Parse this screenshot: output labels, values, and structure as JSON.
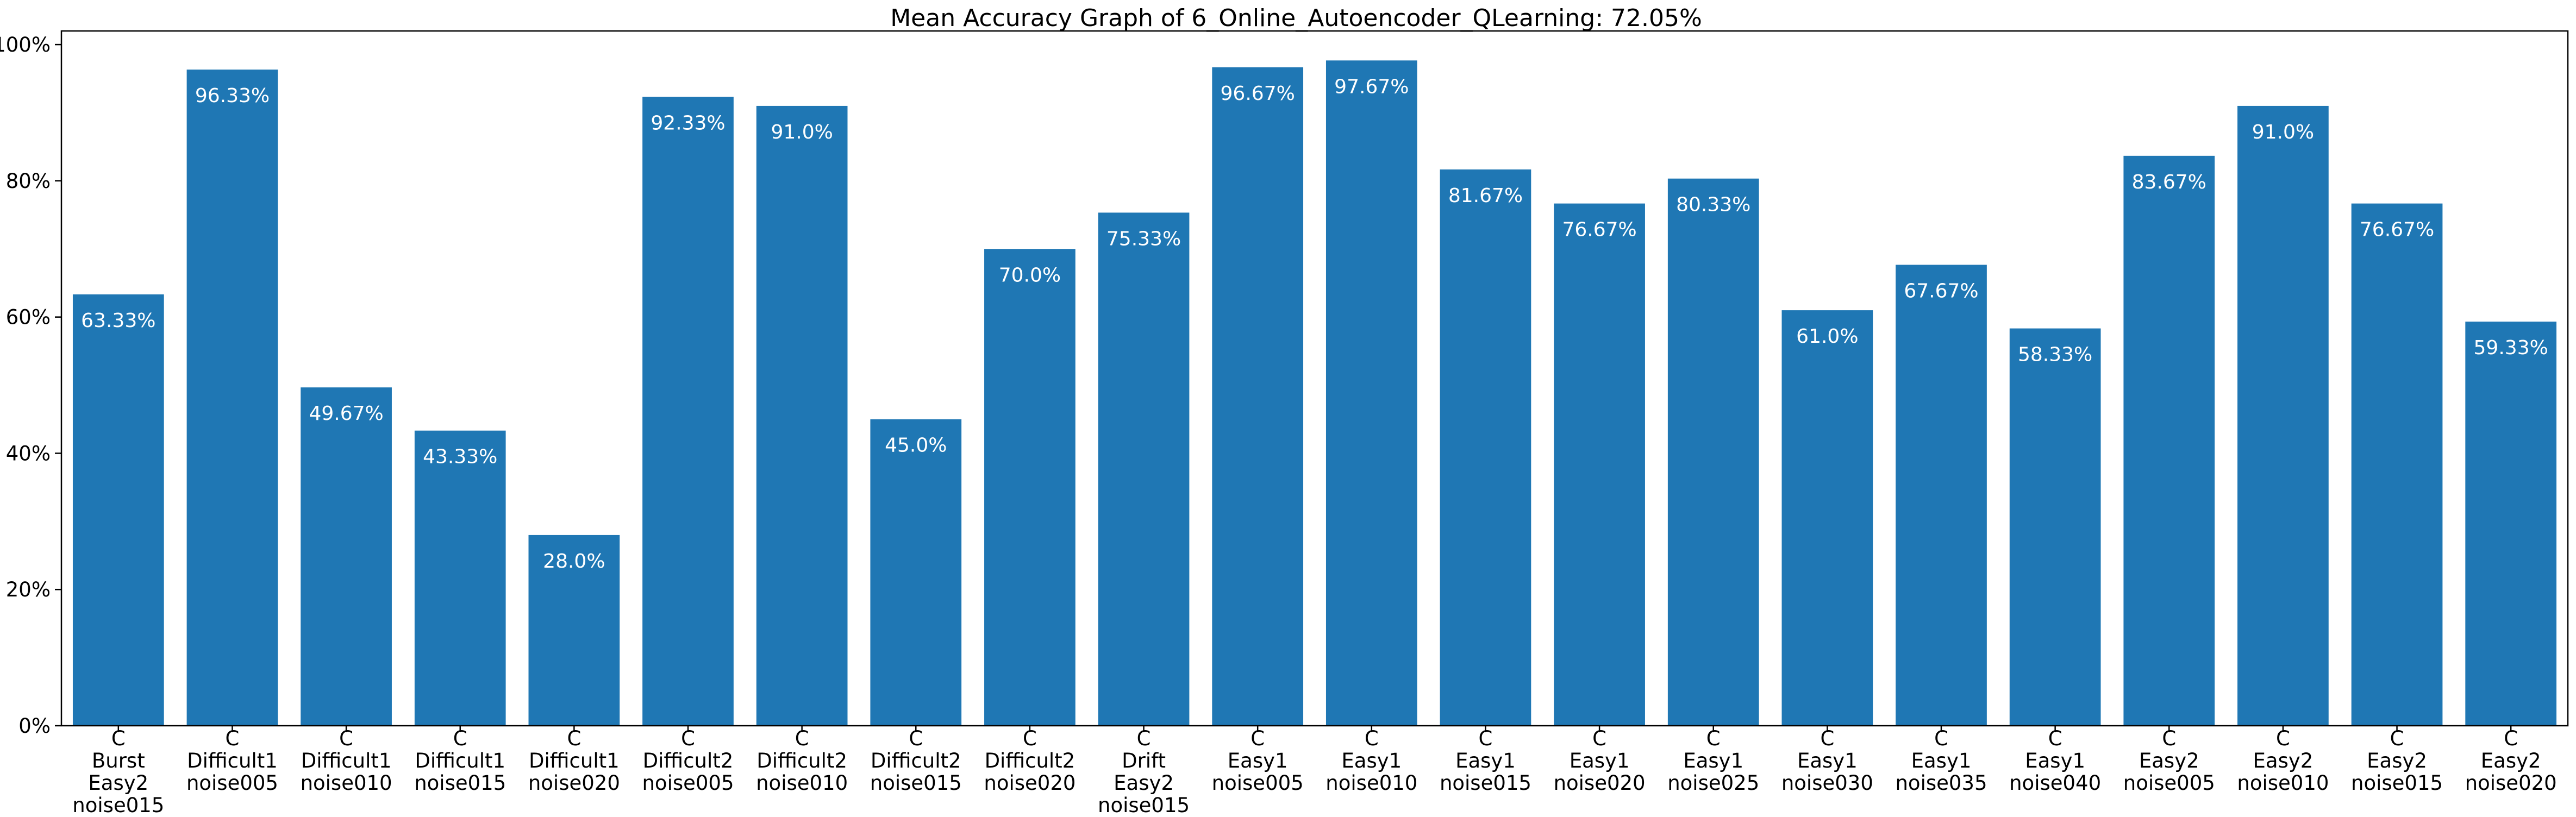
{
  "chart_data": {
    "type": "bar",
    "title": "Mean Accuracy Graph of 6_Online_Autoencoder_QLearning: 72.05%",
    "xlabel": "",
    "ylabel": "",
    "ylim": [
      0,
      1.02
    ],
    "yticks": [
      {
        "value": 0,
        "label": "0%"
      },
      {
        "value": 0.2,
        "label": "20%"
      },
      {
        "value": 0.4,
        "label": "40%"
      },
      {
        "value": 0.6,
        "label": "60%"
      },
      {
        "value": 0.8,
        "label": "80%"
      },
      {
        "value": 1.0,
        "label": "100%"
      }
    ],
    "grid": false,
    "bar_color": "#1f77b4",
    "categories": [
      [
        "C",
        "Burst",
        "Easy2",
        "noise015"
      ],
      [
        "C",
        "Difficult1",
        "noise005"
      ],
      [
        "C",
        "Difficult1",
        "noise010"
      ],
      [
        "C",
        "Difficult1",
        "noise015"
      ],
      [
        "C",
        "Difficult1",
        "noise020"
      ],
      [
        "C",
        "Difficult2",
        "noise005"
      ],
      [
        "C",
        "Difficult2",
        "noise010"
      ],
      [
        "C",
        "Difficult2",
        "noise015"
      ],
      [
        "C",
        "Difficult2",
        "noise020"
      ],
      [
        "C",
        "Drift",
        "Easy2",
        "noise015"
      ],
      [
        "C",
        "Easy1",
        "noise005"
      ],
      [
        "C",
        "Easy1",
        "noise010"
      ],
      [
        "C",
        "Easy1",
        "noise015"
      ],
      [
        "C",
        "Easy1",
        "noise020"
      ],
      [
        "C",
        "Easy1",
        "noise025"
      ],
      [
        "C",
        "Easy1",
        "noise030"
      ],
      [
        "C",
        "Easy1",
        "noise035"
      ],
      [
        "C",
        "Easy1",
        "noise040"
      ],
      [
        "C",
        "Easy2",
        "noise005"
      ],
      [
        "C",
        "Easy2",
        "noise010"
      ],
      [
        "C",
        "Easy2",
        "noise015"
      ],
      [
        "C",
        "Easy2",
        "noise020"
      ]
    ],
    "values": [
      0.6333,
      0.9633,
      0.4967,
      0.4333,
      0.28,
      0.9233,
      0.91,
      0.45,
      0.7,
      0.7533,
      0.9667,
      0.9767,
      0.8167,
      0.7667,
      0.8033,
      0.61,
      0.6767,
      0.5833,
      0.8367,
      0.91,
      0.7667,
      0.5933
    ],
    "data_labels": [
      "63.33%",
      "96.33%",
      "49.67%",
      "43.33%",
      "28.0%",
      "92.33%",
      "91.0%",
      "45.0%",
      "70.0%",
      "75.33%",
      "96.67%",
      "97.67%",
      "81.67%",
      "76.67%",
      "80.33%",
      "61.0%",
      "67.67%",
      "58.33%",
      "83.67%",
      "91.0%",
      "76.67%",
      "59.33%"
    ]
  }
}
